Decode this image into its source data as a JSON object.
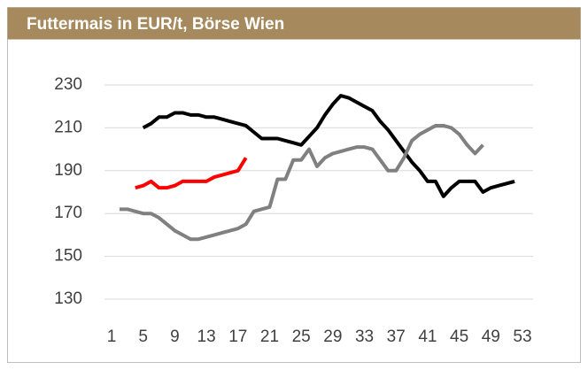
{
  "chart_data": {
    "type": "line",
    "title": "Futtermais in EUR/t, Börse Wien",
    "x": [
      1,
      2,
      3,
      4,
      5,
      6,
      7,
      8,
      9,
      10,
      11,
      12,
      13,
      14,
      15,
      16,
      17,
      18,
      19,
      20,
      21,
      22,
      23,
      24,
      25,
      26,
      27,
      28,
      29,
      30,
      31,
      32,
      33,
      34,
      35,
      36,
      37,
      38,
      39,
      40,
      41,
      42,
      43,
      44,
      45,
      46,
      47,
      48,
      49,
      50,
      51,
      52,
      53
    ],
    "series": [
      {
        "color": "#000000",
        "values": [
          null,
          null,
          null,
          null,
          210,
          212,
          215,
          215,
          217,
          217,
          216,
          216,
          215,
          215,
          214,
          213,
          212,
          211,
          208,
          205,
          205,
          205,
          204,
          203,
          202,
          206,
          210,
          216,
          221,
          225,
          224,
          222,
          220,
          218,
          213,
          209,
          204,
          199,
          194,
          190,
          185,
          185,
          178,
          182,
          185,
          185,
          185,
          180,
          182,
          183,
          184,
          185,
          null
        ]
      },
      {
        "color": "#808080",
        "values": [
          null,
          172,
          172,
          171,
          170,
          170,
          168,
          165,
          162,
          160,
          158,
          158,
          159,
          160,
          161,
          162,
          163,
          165,
          171,
          172,
          173,
          186,
          186,
          195,
          195,
          200,
          192,
          196,
          198,
          199,
          200,
          201,
          201,
          200,
          195,
          190,
          190,
          196,
          204,
          207,
          209,
          211,
          211,
          210,
          207,
          202,
          198,
          202,
          null,
          null,
          null,
          null,
          null
        ]
      },
      {
        "color": "#ff0000",
        "values": [
          null,
          null,
          null,
          182,
          183,
          185,
          182,
          182,
          183,
          185,
          185,
          185,
          185,
          187,
          188,
          189,
          190,
          196,
          null,
          null,
          null,
          null,
          null,
          null,
          null,
          null,
          null,
          null,
          null,
          null,
          null,
          null,
          null,
          null,
          null,
          null,
          null,
          null,
          null,
          null,
          null,
          null,
          null,
          null,
          null,
          null,
          null,
          null,
          null,
          null,
          null,
          null,
          null
        ]
      }
    ],
    "xlim": [
      1,
      53
    ],
    "xticks": [
      1,
      5,
      9,
      13,
      17,
      21,
      25,
      29,
      33,
      37,
      41,
      45,
      49,
      53
    ],
    "ylim": [
      130,
      230
    ],
    "yticks": [
      130,
      150,
      170,
      190,
      210,
      230
    ],
    "grid": true
  }
}
